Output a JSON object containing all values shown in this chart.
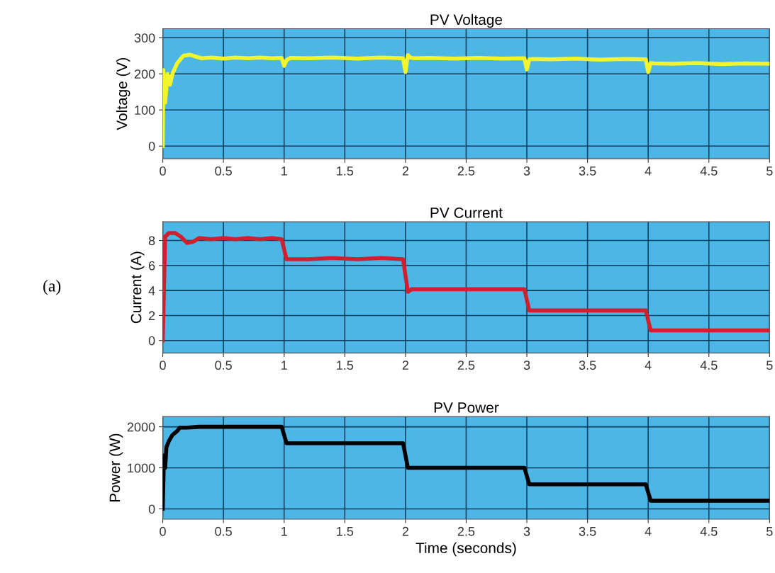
{
  "chart_data": [
    {
      "type": "line",
      "title": "PV Voltage",
      "ylabel": "Voltage (V)",
      "xlim": [
        0,
        5
      ],
      "ylim": [
        -35,
        325
      ],
      "xticks": [
        0,
        0.5,
        1,
        1.5,
        2,
        2.5,
        3,
        3.5,
        4,
        4.5,
        5
      ],
      "yticks": [
        0,
        100,
        200,
        300
      ],
      "grid": true,
      "x": [
        0,
        0.005,
        0.02,
        0.04,
        0.06,
        0.08,
        0.12,
        0.17,
        0.22,
        0.27,
        0.32,
        0.4,
        0.5,
        0.6,
        0.7,
        0.8,
        0.9,
        0.98,
        1.0,
        1.02,
        1.05,
        1.2,
        1.4,
        1.6,
        1.8,
        1.98,
        2.0,
        2.02,
        2.04,
        2.07,
        2.2,
        2.4,
        2.6,
        2.8,
        2.98,
        3.0,
        3.02,
        3.05,
        3.2,
        3.4,
        3.6,
        3.8,
        3.98,
        4.0,
        4.02,
        4.05,
        4.2,
        4.4,
        4.6,
        4.8,
        5
      ],
      "series": [
        {
          "color": "#f2f52a",
          "values": [
            0,
            210,
            120,
            200,
            170,
            200,
            230,
            250,
            253,
            248,
            243,
            245,
            242,
            245,
            243,
            245,
            243,
            244,
            222,
            238,
            244,
            243,
            245,
            242,
            245,
            243,
            205,
            252,
            245,
            243,
            244,
            242,
            244,
            242,
            243,
            212,
            240,
            241,
            240,
            242,
            239,
            241,
            240,
            205,
            230,
            229,
            228,
            230,
            227,
            229,
            228
          ]
        }
      ]
    },
    {
      "type": "line",
      "title": "PV Current",
      "ylabel": "Current (A)",
      "annotations": [
        "(a)"
      ],
      "xlim": [
        0,
        5
      ],
      "ylim": [
        -1,
        9.5
      ],
      "xticks": [
        0,
        0.5,
        1,
        1.5,
        2,
        2.5,
        3,
        3.5,
        4,
        4.5,
        5
      ],
      "yticks": [
        0,
        2,
        4,
        6,
        8
      ],
      "grid": true,
      "x": [
        0,
        0.02,
        0.05,
        0.1,
        0.15,
        0.2,
        0.25,
        0.3,
        0.4,
        0.5,
        0.6,
        0.7,
        0.8,
        0.9,
        0.98,
        1.02,
        1.2,
        1.4,
        1.6,
        1.8,
        1.98,
        2.02,
        2.05,
        2.2,
        2.5,
        2.8,
        2.98,
        3.02,
        3.3,
        3.6,
        3.98,
        4.02,
        4.5,
        5
      ],
      "series": [
        {
          "color": "#d0202e",
          "values": [
            0,
            8.3,
            8.6,
            8.6,
            8.3,
            7.8,
            7.9,
            8.2,
            8.1,
            8.2,
            8.1,
            8.2,
            8.1,
            8.2,
            8.1,
            6.5,
            6.5,
            6.6,
            6.5,
            6.6,
            6.5,
            3.9,
            4.1,
            4.1,
            4.1,
            4.1,
            4.1,
            2.4,
            2.4,
            2.4,
            2.4,
            0.8,
            0.8,
            0.8
          ]
        }
      ]
    },
    {
      "type": "line",
      "title": "PV Power",
      "ylabel": "Power (W)",
      "xlabel": "Time (seconds)",
      "xlim": [
        0,
        5
      ],
      "ylim": [
        -250,
        2250
      ],
      "xticks": [
        0,
        0.5,
        1,
        1.5,
        2,
        2.5,
        3,
        3.5,
        4,
        4.5,
        5
      ],
      "yticks": [
        0,
        1000,
        2000
      ],
      "grid": true,
      "x": [
        0,
        0.01,
        0.02,
        0.03,
        0.05,
        0.08,
        0.12,
        0.14,
        0.2,
        0.3,
        0.98,
        1.02,
        1.98,
        2.02,
        2.98,
        3.02,
        3.98,
        4.02,
        5
      ],
      "series": [
        {
          "color": "#000000",
          "values": [
            0,
            1300,
            1000,
            1500,
            1650,
            1800,
            1900,
            1980,
            1980,
            2000,
            2000,
            1600,
            1600,
            1000,
            1000,
            600,
            600,
            200,
            200
          ]
        }
      ]
    }
  ]
}
